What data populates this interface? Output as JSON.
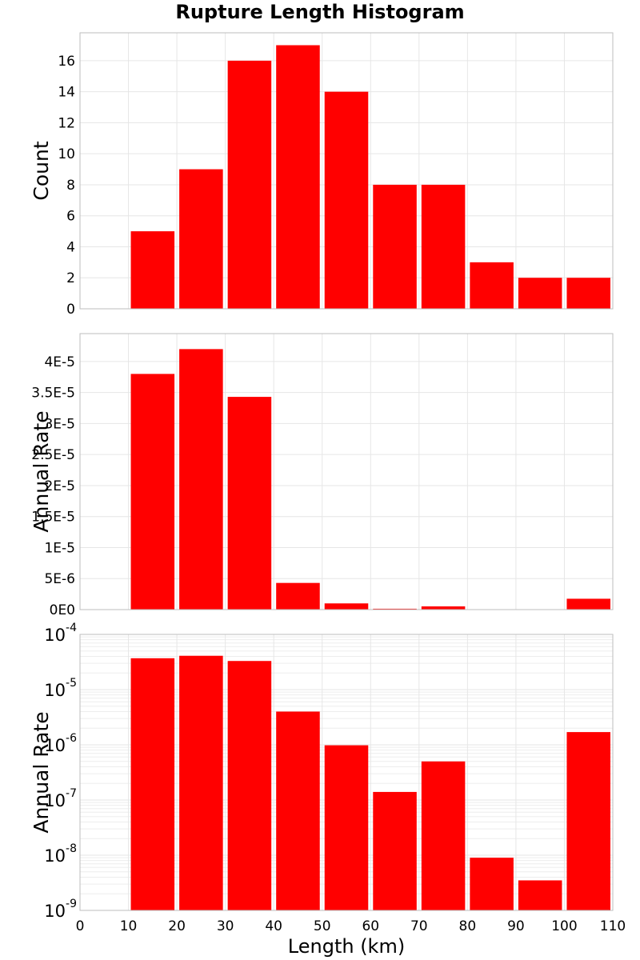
{
  "chart_data": {
    "title": "Rupture Length Histogram",
    "type": "bar",
    "xlabel": "Length (km)",
    "xlim": [
      0,
      110
    ],
    "xticks": [
      0,
      10,
      20,
      30,
      40,
      50,
      60,
      70,
      80,
      90,
      100,
      110
    ],
    "bar_color": "#ff0000",
    "bins": [
      {
        "x0": 10,
        "x1": 20
      },
      {
        "x0": 20,
        "x1": 30
      },
      {
        "x0": 30,
        "x1": 40
      },
      {
        "x0": 40,
        "x1": 50
      },
      {
        "x0": 50,
        "x1": 60
      },
      {
        "x0": 60,
        "x1": 70
      },
      {
        "x0": 70,
        "x1": 80
      },
      {
        "x0": 80,
        "x1": 90
      },
      {
        "x0": 90,
        "x1": 100
      },
      {
        "x0": 100,
        "x1": 110
      }
    ],
    "panels": [
      {
        "name": "count-panel",
        "ylabel": "Count",
        "scale": "linear",
        "ylim": [
          0,
          17.8
        ],
        "yticks": [
          0,
          2,
          4,
          6,
          8,
          10,
          12,
          14,
          16
        ],
        "ytick_labels": [
          "0",
          "2",
          "4",
          "6",
          "8",
          "10",
          "12",
          "14",
          "16"
        ],
        "values": [
          5,
          9,
          16,
          17,
          14,
          8,
          8,
          3,
          2,
          2
        ]
      },
      {
        "name": "rate-linear-panel",
        "ylabel": "Annual Rate",
        "scale": "linear",
        "ylim": [
          0,
          4.45e-05
        ],
        "yticks": [
          0,
          5e-06,
          1e-05,
          1.5e-05,
          2e-05,
          2.5e-05,
          3e-05,
          3.5e-05,
          4e-05
        ],
        "ytick_labels": [
          "0E0",
          "5E-6",
          "1E-5",
          "1.5E-5",
          "2E-5",
          "2.5E-5",
          "3E-5",
          "3.5E-5",
          "4E-5"
        ],
        "values": [
          3.8e-05,
          4.2e-05,
          3.43e-05,
          4.3e-06,
          1e-06,
          1.4e-07,
          5.2e-07,
          9e-09,
          3.5e-09,
          1.75e-06
        ]
      },
      {
        "name": "rate-log-panel",
        "ylabel": "Annual Rate",
        "scale": "log",
        "ylim": [
          1e-09,
          0.0001
        ],
        "yticks": [
          1e-09,
          1e-08,
          1e-07,
          1e-06,
          1e-05,
          0.0001
        ],
        "ytick_labels": [
          {
            "base": "10",
            "exp": "-9"
          },
          {
            "base": "10",
            "exp": "-8"
          },
          {
            "base": "10",
            "exp": "-7"
          },
          {
            "base": "10",
            "exp": "-6"
          },
          {
            "base": "10",
            "exp": "-5"
          },
          {
            "base": "10",
            "exp": "-4"
          }
        ],
        "values": [
          3.7e-05,
          4.1e-05,
          3.3e-05,
          4e-06,
          9.8e-07,
          1.4e-07,
          5e-07,
          9e-09,
          3.5e-09,
          1.7e-06
        ]
      }
    ]
  }
}
